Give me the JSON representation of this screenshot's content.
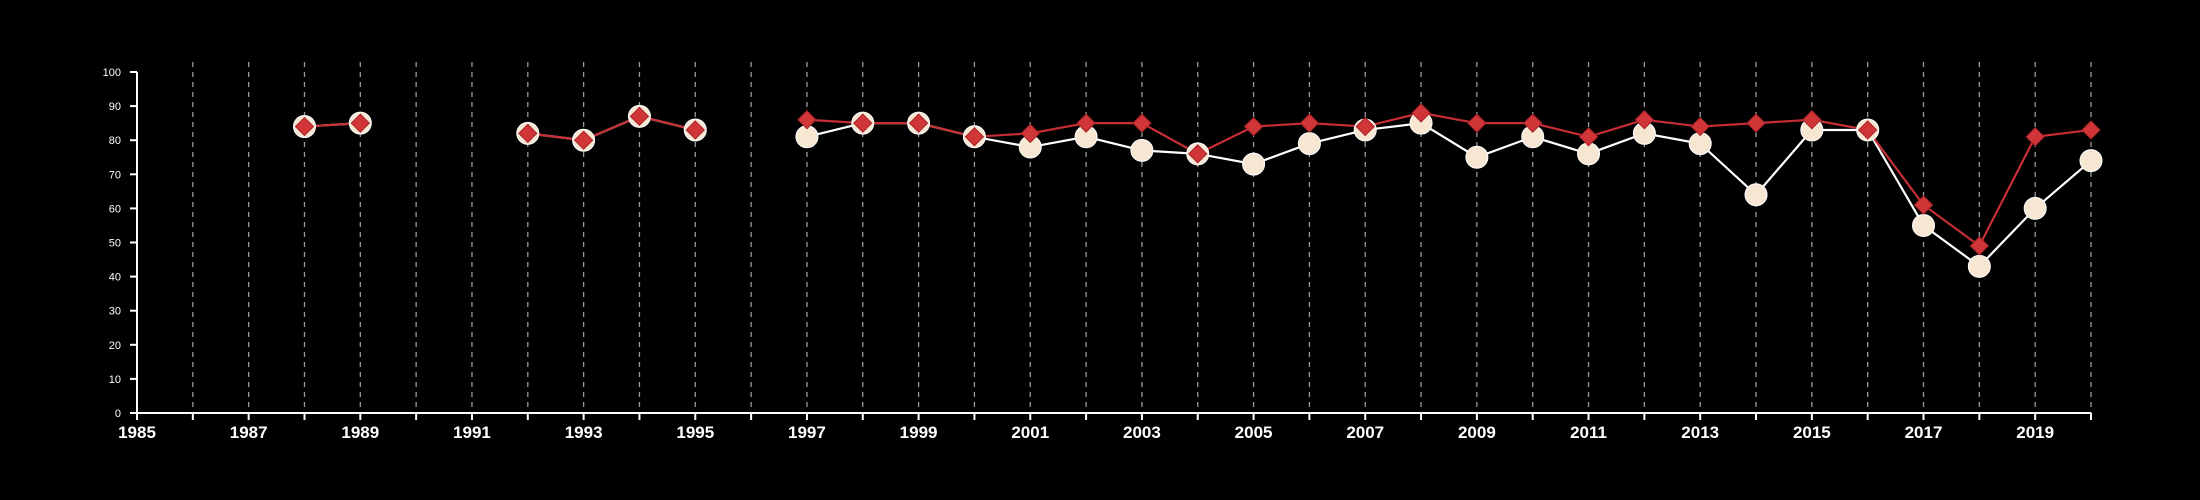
{
  "chart_data": {
    "type": "line",
    "title": "",
    "xlabel": "",
    "ylabel": "",
    "xlim": [
      1985,
      2020
    ],
    "ylim": [
      0,
      100
    ],
    "x_ticks": [
      1985,
      1987,
      1989,
      1991,
      1993,
      1995,
      1997,
      1999,
      2001,
      2003,
      2005,
      2007,
      2009,
      2011,
      2013,
      2015,
      2017,
      2019
    ],
    "y_ticks": [
      0,
      10,
      20,
      30,
      40,
      50,
      60,
      70,
      80,
      90,
      100
    ],
    "vertical_gridlines": "dashed at every year",
    "legend": "none",
    "series": [
      {
        "marker": "circle",
        "color": "#ffffff",
        "marker_fill": "#f6e6d2",
        "points": [
          {
            "x": 1988,
            "y": 84
          },
          {
            "x": 1989,
            "y": 85
          },
          {
            "x": 1992,
            "y": 82
          },
          {
            "x": 1993,
            "y": 80
          },
          {
            "x": 1994,
            "y": 87
          },
          {
            "x": 1995,
            "y": 83
          },
          {
            "x": 1997,
            "y": 81
          },
          {
            "x": 1998,
            "y": 85
          },
          {
            "x": 1999,
            "y": 85
          },
          {
            "x": 2000,
            "y": 81
          },
          {
            "x": 2001,
            "y": 78
          },
          {
            "x": 2002,
            "y": 81
          },
          {
            "x": 2003,
            "y": 77
          },
          {
            "x": 2004,
            "y": 76
          },
          {
            "x": 2005,
            "y": 73
          },
          {
            "x": 2006,
            "y": 79
          },
          {
            "x": 2007,
            "y": 83
          },
          {
            "x": 2008,
            "y": 85
          },
          {
            "x": 2009,
            "y": 75
          },
          {
            "x": 2010,
            "y": 81
          },
          {
            "x": 2011,
            "y": 76
          },
          {
            "x": 2012,
            "y": 82
          },
          {
            "x": 2013,
            "y": 79
          },
          {
            "x": 2014,
            "y": 64
          },
          {
            "x": 2015,
            "y": 83
          },
          {
            "x": 2016,
            "y": 83
          },
          {
            "x": 2017,
            "y": 55
          },
          {
            "x": 2018,
            "y": 43
          },
          {
            "x": 2019,
            "y": 60
          },
          {
            "x": 2020,
            "y": 74
          }
        ]
      },
      {
        "marker": "diamond",
        "color": "#c62e35",
        "marker_fill": "#d03538",
        "points": [
          {
            "x": 1988,
            "y": 84
          },
          {
            "x": 1989,
            "y": 85
          },
          {
            "x": 1992,
            "y": 82
          },
          {
            "x": 1993,
            "y": 80
          },
          {
            "x": 1994,
            "y": 87
          },
          {
            "x": 1995,
            "y": 83
          },
          {
            "x": 1997,
            "y": 86
          },
          {
            "x": 1998,
            "y": 85
          },
          {
            "x": 1999,
            "y": 85
          },
          {
            "x": 2000,
            "y": 81
          },
          {
            "x": 2001,
            "y": 82
          },
          {
            "x": 2002,
            "y": 85
          },
          {
            "x": 2003,
            "y": 85
          },
          {
            "x": 2004,
            "y": 76
          },
          {
            "x": 2005,
            "y": 84
          },
          {
            "x": 2006,
            "y": 85
          },
          {
            "x": 2007,
            "y": 84
          },
          {
            "x": 2008,
            "y": 88
          },
          {
            "x": 2009,
            "y": 85
          },
          {
            "x": 2010,
            "y": 85
          },
          {
            "x": 2011,
            "y": 81
          },
          {
            "x": 2012,
            "y": 86
          },
          {
            "x": 2013,
            "y": 84
          },
          {
            "x": 2014,
            "y": 85
          },
          {
            "x": 2015,
            "y": 86
          },
          {
            "x": 2016,
            "y": 83
          },
          {
            "x": 2017,
            "y": 61
          },
          {
            "x": 2018,
            "y": 49
          },
          {
            "x": 2019,
            "y": 81
          },
          {
            "x": 2020,
            "y": 83
          }
        ]
      }
    ]
  }
}
